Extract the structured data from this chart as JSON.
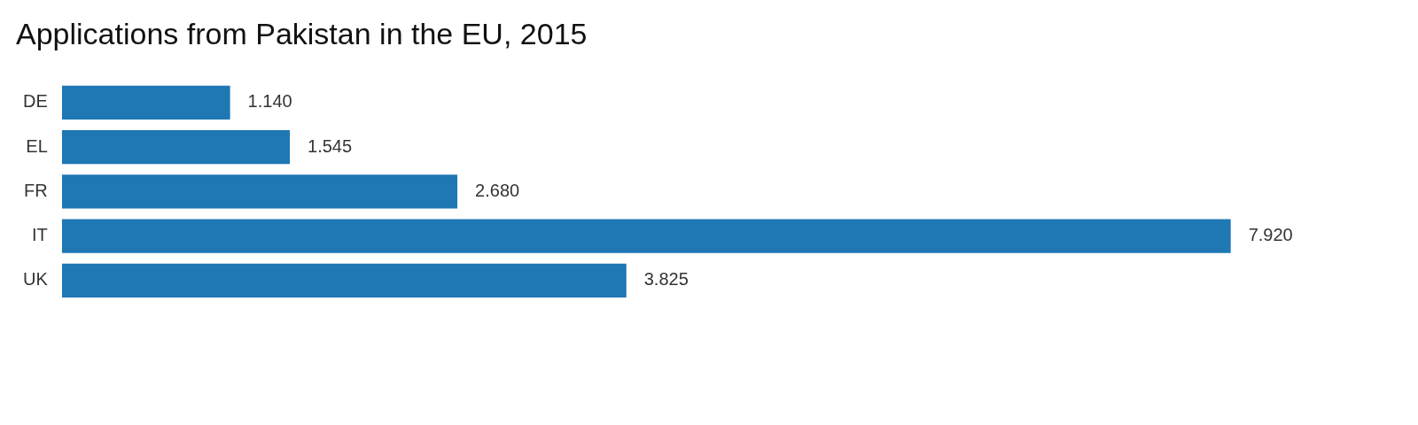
{
  "chart_data": {
    "type": "bar",
    "orientation": "horizontal",
    "title": "Applications from Pakistan in the EU, 2015",
    "categories": [
      "DE",
      "EL",
      "FR",
      "IT",
      "UK"
    ],
    "values": [
      1140,
      1545,
      2680,
      7920,
      3825
    ],
    "value_labels": [
      "1.140",
      "1.545",
      "2.680",
      "7.920",
      "3.825"
    ],
    "color": "#1f77b4",
    "legend": false
  }
}
